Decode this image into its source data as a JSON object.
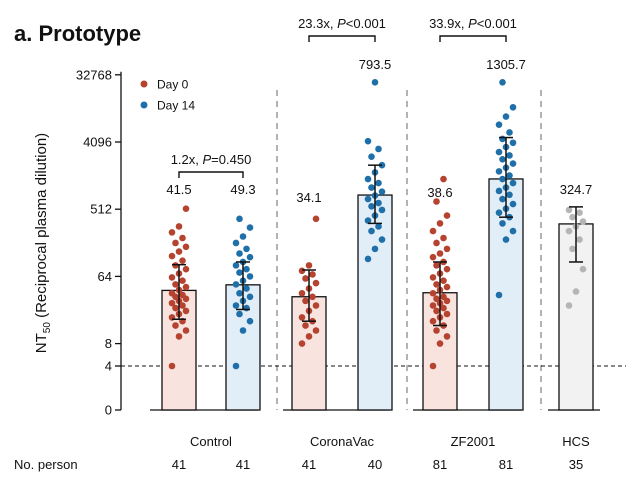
{
  "chart_data": {
    "type": "bar",
    "panel_title": "a. Prototype",
    "ylabel_main": "NT",
    "ylabel_sub": "50",
    "ylabel_rest": " (Reciprocal plasma dilution)",
    "y_scale": "log2 (with 0 at bottom)",
    "y_ticks": [
      0,
      4,
      8,
      64,
      512,
      4096,
      32768
    ],
    "y_tick_labels": [
      "0",
      "4",
      "8",
      "64",
      "512",
      "4096",
      "32768"
    ],
    "threshold_line": 4,
    "legend": {
      "position": "top-left",
      "entries": [
        {
          "label": "Day 0",
          "color": "#b5432f"
        },
        {
          "label": "Day 14",
          "color": "#1f6fa8"
        }
      ]
    },
    "colors": {
      "day0_bar": "#f8e3df",
      "day14_bar": "#e1edf7",
      "hcs_bar": "#f2f2f2",
      "day0_dot": "#b5432f",
      "day14_dot": "#1f6fa8",
      "hcs_dot": "#b5b5b5",
      "separator": "#9a9a9a"
    },
    "groups": [
      "Control",
      "CoronaVac",
      "ZF2001",
      "HCS"
    ],
    "bars": [
      {
        "group": "Control",
        "day": "Day 0",
        "gmt": 41.5,
        "gmt_label": "41.5",
        "ci": [
          17,
          92
        ],
        "n": 41,
        "points": [
          4,
          10,
          12,
          14,
          16,
          18,
          20,
          22,
          24,
          26,
          28,
          30,
          32,
          34,
          36,
          38,
          42,
          46,
          50,
          56,
          62,
          70,
          80,
          90,
          104,
          120,
          138,
          160,
          180,
          210,
          250,
          300,
          520
        ]
      },
      {
        "group": "Control",
        "day": "Day 14",
        "gmt": 49.3,
        "gmt_label": "49.3",
        "ci": [
          23,
          100
        ],
        "n": 41,
        "points": [
          4,
          12,
          16,
          20,
          24,
          26,
          30,
          34,
          38,
          44,
          50,
          56,
          64,
          72,
          80,
          90,
          100,
          116,
          130,
          150,
          180,
          220,
          290,
          380
        ]
      },
      {
        "group": "CoronaVac",
        "day": "Day 0",
        "gmt": 34.1,
        "gmt_label": "34.1",
        "ci": [
          16,
          78
        ],
        "n": 41,
        "points": [
          8,
          10,
          12,
          14,
          16,
          18,
          22,
          26,
          30,
          34,
          38,
          44,
          52,
          60,
          68,
          76,
          90,
          380
        ]
      },
      {
        "group": "CoronaVac",
        "day": "Day 14",
        "gmt": 793.5,
        "gmt_label": "793.5",
        "ci": [
          330,
          2000
        ],
        "n": 40,
        "points": [
          110,
          150,
          200,
          260,
          300,
          360,
          420,
          500,
          560,
          620,
          700,
          780,
          880,
          1000,
          1150,
          1300,
          1600,
          2000,
          2600,
          3300,
          4200,
          26000
        ]
      },
      {
        "group": "ZF2001",
        "day": "Day 0",
        "gmt": 38.6,
        "gmt_label": "38.6",
        "ci": [
          14,
          100
        ],
        "n": 81,
        "points": [
          4,
          8,
          10,
          12,
          14,
          16,
          18,
          20,
          22,
          24,
          26,
          28,
          30,
          32,
          34,
          38,
          42,
          46,
          50,
          56,
          62,
          70,
          80,
          90,
          100,
          116,
          130,
          150,
          180,
          210,
          260,
          330,
          420,
          650,
          1300
        ]
      },
      {
        "group": "ZF2001",
        "day": "Day 14",
        "gmt": 1305.7,
        "gmt_label": "1305.7",
        "ci": [
          400,
          4700
        ],
        "n": 81,
        "points": [
          36,
          200,
          260,
          330,
          400,
          460,
          520,
          600,
          700,
          800,
          900,
          1000,
          1150,
          1300,
          1450,
          1650,
          1850,
          2100,
          2400,
          2700,
          3000,
          3500,
          4000,
          4500,
          5500,
          7000,
          9000,
          12000,
          26000
        ]
      },
      {
        "group": "HCS",
        "day": "HCS",
        "gmt": 324.7,
        "gmt_label": "324.7",
        "ci": [
          100,
          550
        ],
        "n": 35,
        "points": [
          26,
          40,
          80,
          150,
          200,
          260,
          300,
          350,
          400,
          460,
          500
        ]
      }
    ],
    "comparisons": [
      {
        "prefix": "1.2x, ",
        "p_symbol": "P",
        "p_value": "=0.450",
        "from_bar": 0,
        "to_bar": 1
      },
      {
        "prefix": "23.3x, ",
        "p_symbol": "P",
        "p_value": "<0.001",
        "from_bar": 2,
        "to_bar": 3
      },
      {
        "prefix": "33.9x, ",
        "p_symbol": "P",
        "p_value": "<0.001",
        "from_bar": 4,
        "to_bar": 5
      }
    ],
    "n_label": "No. person",
    "n_values": [
      "41",
      "41",
      "41",
      "40",
      "81",
      "81",
      "35"
    ]
  }
}
